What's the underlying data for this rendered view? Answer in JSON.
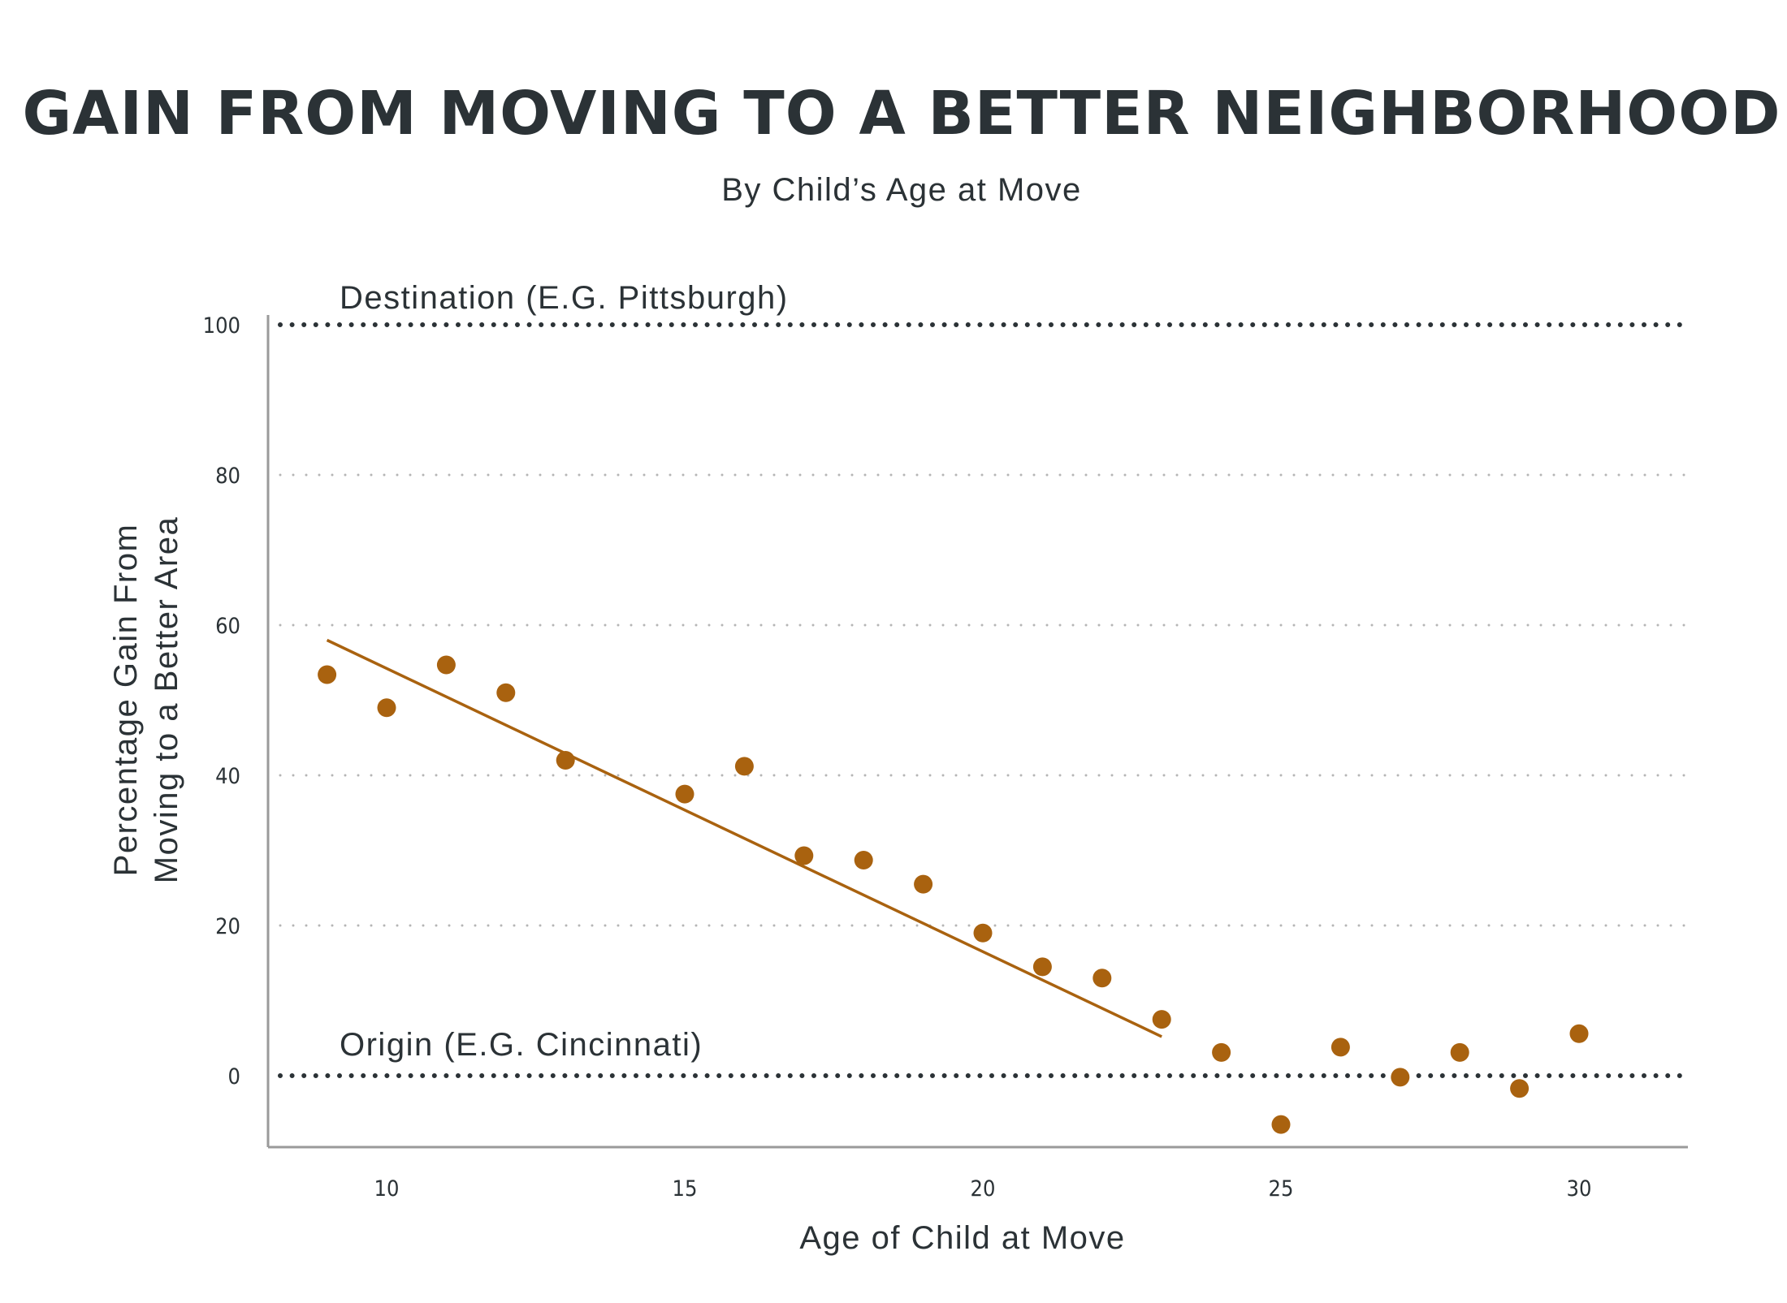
{
  "chart_data": {
    "type": "scatter",
    "title": "GAIN FROM MOVING TO A BETTER NEIGHBORHOOD",
    "subtitle": "By Child’s Age at Move",
    "xlabel": "Age of Child at Move",
    "ylabel_line1": "Percentage Gain From",
    "ylabel_line2": "Moving to a Better Area",
    "xlim": [
      8,
      32
    ],
    "ylim": [
      -10,
      102
    ],
    "xticks": [
      10,
      15,
      20,
      25,
      30
    ],
    "xtick_labels": [
      "10",
      "15",
      "20",
      "25",
      "30"
    ],
    "yticks": [
      0,
      20,
      40,
      60,
      80,
      100
    ],
    "ytick_labels": [
      "0",
      "20",
      "40",
      "60",
      "80",
      "100"
    ],
    "grid": true,
    "reference_lines": [
      {
        "label": "Destination (E.G. Pittsburgh)",
        "y": 100
      },
      {
        "label": "Origin (E.G. Cincinnati)",
        "y": 0
      }
    ],
    "x": [
      9,
      10,
      11,
      12,
      13,
      15,
      16,
      17,
      18,
      19,
      20,
      21,
      22,
      23,
      24,
      25,
      26,
      27,
      28,
      29,
      30
    ],
    "y": [
      53.4,
      49,
      54.7,
      51,
      42,
      37.5,
      41.2,
      29.3,
      28.7,
      25.5,
      19,
      14.5,
      13,
      7.5,
      3.1,
      -6.5,
      3.8,
      -0.2,
      3.1,
      -1.7,
      5.6
    ],
    "trend_line": {
      "x": [
        9,
        23
      ],
      "y": [
        58,
        5.2
      ]
    },
    "colors": {
      "points": "#a9620f",
      "trend": "#a9620f",
      "reference": "#2b3236",
      "grid": "#b5b5b5",
      "axis": "#9a9a9a",
      "text": "#2b3236"
    }
  }
}
